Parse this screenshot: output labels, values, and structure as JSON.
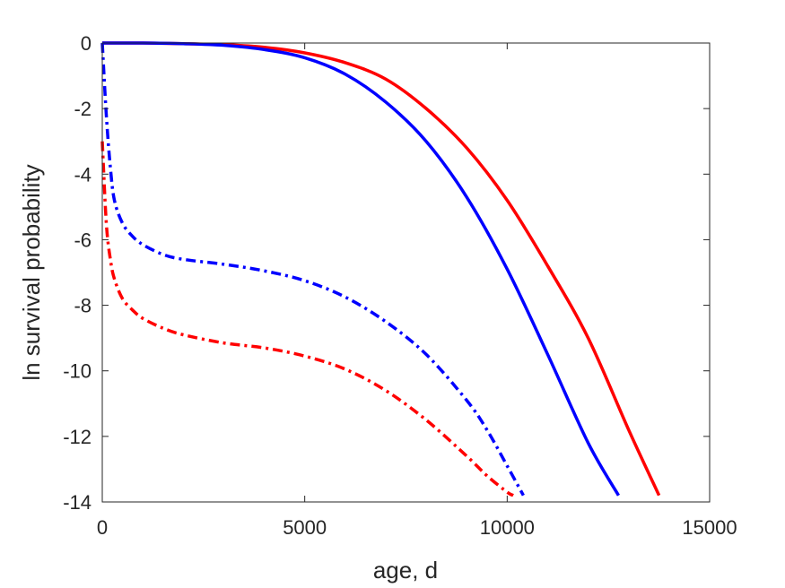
{
  "chart_data": {
    "type": "line",
    "title": "",
    "xlabel": "age, d",
    "ylabel": "ln survival probability",
    "xlim": [
      0,
      15000
    ],
    "ylim": [
      -14,
      0
    ],
    "xticks": [
      0,
      5000,
      10000,
      15000
    ],
    "yticks": [
      0,
      -2,
      -4,
      -6,
      -8,
      -10,
      -12,
      -14
    ],
    "grid": false,
    "legend": "none",
    "series": [
      {
        "color": "#ff0000",
        "style": "solid",
        "x": [
          0,
          1000,
          2000,
          3000,
          4000,
          5000,
          6000,
          7000,
          8000,
          9000,
          10000,
          11000,
          12000,
          13000,
          13750
        ],
        "y": [
          0,
          0,
          -0.02,
          -0.05,
          -0.13,
          -0.3,
          -0.6,
          -1.1,
          -2.0,
          -3.2,
          -4.8,
          -6.8,
          -9.0,
          -11.8,
          -13.8
        ]
      },
      {
        "color": "#0000ff",
        "style": "solid",
        "x": [
          0,
          1000,
          2000,
          3000,
          4000,
          5000,
          6000,
          7000,
          8000,
          9000,
          10000,
          11000,
          12000,
          12750
        ],
        "y": [
          0,
          0,
          -0.02,
          -0.07,
          -0.2,
          -0.45,
          -0.95,
          -1.8,
          -3.0,
          -4.7,
          -6.9,
          -9.5,
          -12.2,
          -13.8
        ]
      },
      {
        "color": "#0000ff",
        "style": "dashdot",
        "x": [
          0,
          100,
          200,
          300,
          500,
          750,
          1000,
          1500,
          2000,
          3000,
          4000,
          5000,
          6000,
          7000,
          8000,
          9000,
          9500,
          10000,
          10400
        ],
        "y": [
          0,
          -2.2,
          -3.8,
          -4.8,
          -5.5,
          -5.9,
          -6.15,
          -6.45,
          -6.6,
          -6.75,
          -6.95,
          -7.25,
          -7.75,
          -8.5,
          -9.5,
          -10.9,
          -11.8,
          -12.9,
          -13.8
        ]
      },
      {
        "color": "#ff0000",
        "style": "dashdot",
        "x": [
          0,
          100,
          200,
          300,
          500,
          750,
          1000,
          1500,
          2000,
          3000,
          4000,
          5000,
          6000,
          7000,
          8000,
          9000,
          9500,
          10000,
          10150
        ],
        "y": [
          -3.0,
          -5.5,
          -6.6,
          -7.2,
          -7.8,
          -8.15,
          -8.4,
          -8.7,
          -8.9,
          -9.15,
          -9.3,
          -9.55,
          -9.95,
          -10.6,
          -11.5,
          -12.6,
          -13.2,
          -13.7,
          -13.8
        ]
      }
    ]
  }
}
